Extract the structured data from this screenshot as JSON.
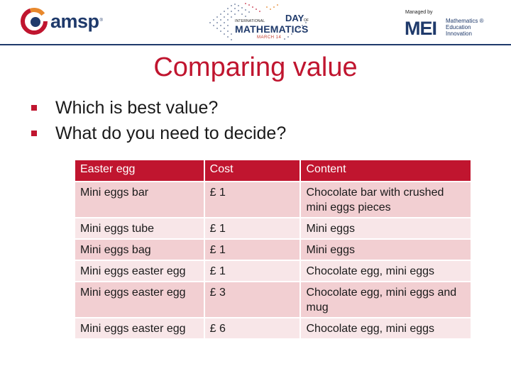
{
  "header": {
    "amsp_logo": "amsp",
    "amsp_tm": "®",
    "idm_line1": "INTERNATIONAL",
    "idm_day": "DAY",
    "idm_of": "OF",
    "idm_math": "MATHEMATICS",
    "idm_date": "MARCH 14",
    "managed_by": "Managed by",
    "mei_logo": "MEI",
    "mei_tagline_1": "Mathematics ®",
    "mei_tagline_2": "Education",
    "mei_tagline_3": "Innovation",
    "colors": {
      "brand_navy": "#1f3a6b",
      "brand_red": "#c0152f"
    }
  },
  "title": "Comparing value",
  "bullets": [
    "Which is best value?",
    "What do you need to decide?"
  ],
  "table": {
    "columns": [
      "Easter egg",
      "Cost",
      "Content"
    ],
    "rows": [
      [
        "Mini eggs bar",
        "£ 1",
        "Chocolate bar with crushed mini eggs pieces"
      ],
      [
        "Mini eggs tube",
        "£ 1",
        "Mini eggs"
      ],
      [
        "Mini eggs bag",
        "£ 1",
        "Mini eggs"
      ],
      [
        "Mini eggs easter egg",
        "£ 1",
        "Chocolate egg, mini eggs"
      ],
      [
        "Mini eggs easter egg",
        "£ 3",
        "Chocolate egg, mini eggs and mug"
      ],
      [
        "Mini eggs easter egg",
        "£ 6",
        "Chocolate egg, mini eggs"
      ]
    ]
  }
}
